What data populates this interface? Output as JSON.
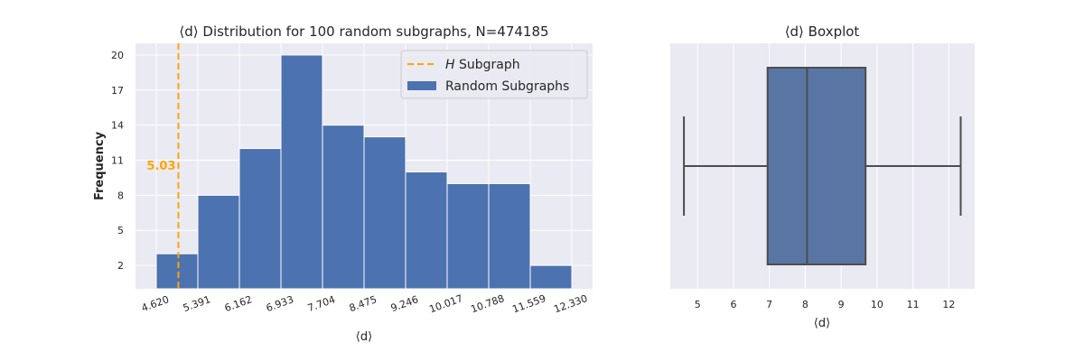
{
  "chart_data": [
    {
      "type": "bar",
      "title": "⟨d⟩ Distribution for 100 random subgraphs, N=474185",
      "xlabel": "⟨d⟩",
      "ylabel": "Frequency",
      "bin_edges": [
        4.62,
        5.391,
        6.162,
        6.933,
        7.704,
        8.475,
        9.246,
        10.017,
        10.788,
        11.559,
        12.33
      ],
      "x_tick_labels": [
        "4.620",
        "5.391",
        "6.162",
        "6.933",
        "7.704",
        "8.475",
        "9.246",
        "10.017",
        "10.788",
        "11.559",
        "12.330"
      ],
      "values": [
        3,
        8,
        12,
        20,
        14,
        13,
        10,
        9,
        9,
        2
      ],
      "y_ticks": [
        2,
        5,
        8,
        11,
        14,
        17,
        20
      ],
      "ylim": [
        0,
        21
      ],
      "bar_color": "#4c72b0",
      "reference_line": {
        "x": 5.03,
        "label": "5.03",
        "color": "#ffa500"
      },
      "legend": {
        "position": "top-right",
        "entries": [
          {
            "label_prefix": "H",
            "label_suffix": " Subgraph",
            "style": "dashed-line",
            "color": "#ffa500"
          },
          {
            "label": "Random Subgraphs",
            "style": "patch",
            "color": "#4c72b0"
          }
        ]
      },
      "grid": true
    },
    {
      "type": "box",
      "title": "⟨d⟩ Boxplot",
      "xlabel": "⟨d⟩",
      "min": 4.62,
      "q1": 6.95,
      "median": 8.05,
      "q3": 9.68,
      "max": 12.33,
      "x_ticks": [
        5,
        6,
        7,
        8,
        9,
        10,
        11,
        12
      ],
      "xlim": [
        4.24,
        12.72
      ],
      "box_color": "#5975a4",
      "grid": true
    }
  ]
}
